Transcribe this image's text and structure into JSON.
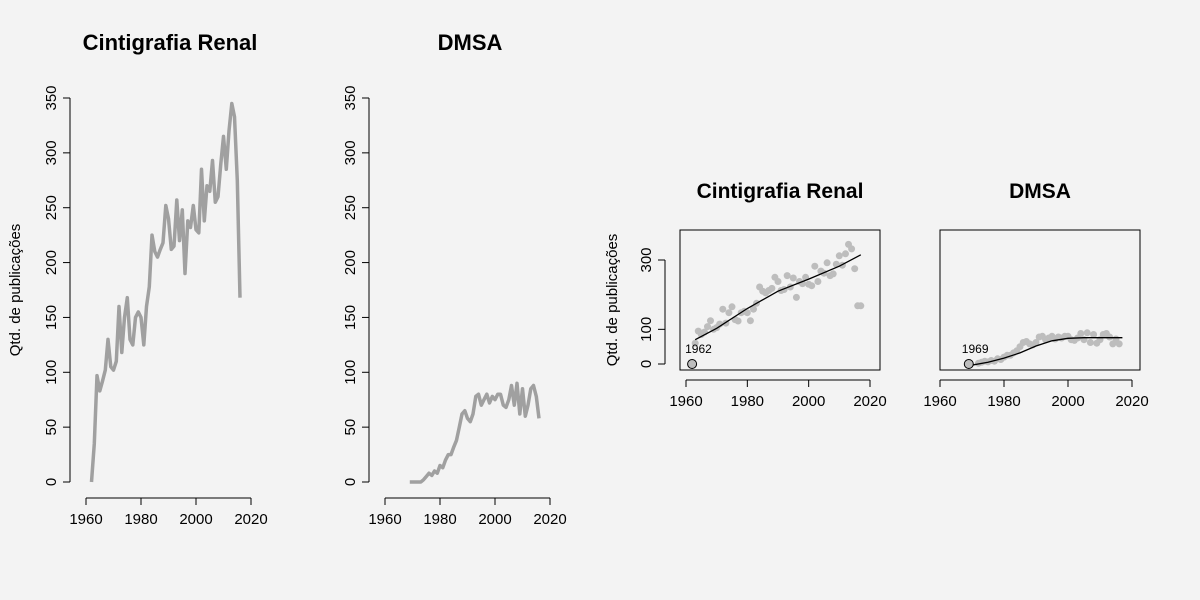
{
  "chart_data": [
    {
      "type": "line",
      "title": "Cintigrafia Renal",
      "xlabel": "",
      "ylabel": "Qtd. de publicações",
      "xlim": [
        1962,
        2017
      ],
      "ylim": [
        0,
        350
      ],
      "xticks": [
        "1960",
        "1980",
        "2000",
        "2020"
      ],
      "yticks": [
        "0",
        "50",
        "100",
        "150",
        "200",
        "250",
        "300",
        "350"
      ],
      "x": [
        1962,
        1963,
        1964,
        1965,
        1966,
        1967,
        1968,
        1969,
        1970,
        1971,
        1972,
        1973,
        1974,
        1975,
        1976,
        1977,
        1978,
        1979,
        1980,
        1981,
        1982,
        1983,
        1984,
        1985,
        1986,
        1987,
        1988,
        1989,
        1990,
        1991,
        1992,
        1993,
        1994,
        1995,
        1996,
        1997,
        1998,
        1999,
        2000,
        2001,
        2002,
        2003,
        2004,
        2005,
        2006,
        2007,
        2008,
        2009,
        2010,
        2011,
        2012,
        2013,
        2014,
        2015,
        2016
      ],
      "y": [
        0,
        35,
        97,
        83,
        92,
        102,
        130,
        105,
        102,
        110,
        160,
        118,
        150,
        168,
        130,
        125,
        150,
        155,
        150,
        125,
        160,
        178,
        225,
        210,
        205,
        212,
        218,
        252,
        240,
        212,
        215,
        257,
        220,
        248,
        190,
        238,
        232,
        252,
        230,
        227,
        285,
        238,
        270,
        265,
        293,
        255,
        260,
        290,
        315,
        285,
        320,
        345,
        333,
        275,
        168
      ]
    },
    {
      "type": "line",
      "title": "DMSA",
      "xlabel": "",
      "ylabel": "",
      "xlim": [
        1969,
        2017
      ],
      "ylim": [
        0,
        350
      ],
      "xticks": [
        "1960",
        "1980",
        "2000",
        "2020"
      ],
      "yticks": [
        "0",
        "50",
        "100",
        "150",
        "200",
        "250",
        "300",
        "350"
      ],
      "x": [
        1969,
        1970,
        1971,
        1972,
        1973,
        1974,
        1975,
        1976,
        1977,
        1978,
        1979,
        1980,
        1981,
        1982,
        1983,
        1984,
        1985,
        1986,
        1987,
        1988,
        1989,
        1990,
        1991,
        1992,
        1993,
        1994,
        1995,
        1996,
        1997,
        1998,
        1999,
        2000,
        2001,
        2002,
        2003,
        2004,
        2005,
        2006,
        2007,
        2008,
        2009,
        2010,
        2011,
        2012,
        2013,
        2014,
        2015,
        2016
      ],
      "y": [
        0,
        0,
        0,
        0,
        0,
        2,
        5,
        8,
        6,
        10,
        8,
        15,
        13,
        20,
        25,
        25,
        32,
        38,
        50,
        62,
        65,
        58,
        55,
        62,
        78,
        80,
        70,
        75,
        80,
        72,
        78,
        75,
        80,
        80,
        70,
        68,
        75,
        88,
        70,
        90,
        62,
        85,
        60,
        70,
        85,
        88,
        78,
        58
      ]
    },
    {
      "type": "scatter",
      "title": "Cintigrafia Renal",
      "xlabel": "",
      "ylabel": "Qtd. de publicações",
      "xlim": [
        1959,
        2022
      ],
      "ylim": [
        -10,
        385
      ],
      "xticks": [
        "1960",
        "1980",
        "2000",
        "2020"
      ],
      "yticks": [
        "0",
        "100",
        "300"
      ],
      "first_year_label": "1962",
      "first_point": {
        "x": 1962,
        "y": 0
      },
      "x": [
        1963,
        1964,
        1965,
        1966,
        1967,
        1968,
        1969,
        1970,
        1971,
        1972,
        1973,
        1974,
        1975,
        1976,
        1977,
        1978,
        1979,
        1980,
        1981,
        1982,
        1983,
        1984,
        1985,
        1986,
        1987,
        1988,
        1989,
        1990,
        1991,
        1992,
        1993,
        1994,
        1995,
        1996,
        1997,
        1998,
        1999,
        2000,
        2001,
        2002,
        2003,
        2004,
        2005,
        2006,
        2007,
        2008,
        2009,
        2010,
        2011,
        2012,
        2013,
        2014,
        2015,
        2016,
        2017
      ],
      "y": [
        60,
        95,
        85,
        92,
        108,
        125,
        100,
        105,
        115,
        158,
        118,
        148,
        165,
        128,
        124,
        148,
        152,
        148,
        125,
        158,
        175,
        222,
        210,
        205,
        212,
        218,
        250,
        238,
        212,
        215,
        255,
        222,
        248,
        192,
        238,
        232,
        250,
        230,
        226,
        282,
        238,
        268,
        262,
        292,
        255,
        260,
        288,
        312,
        285,
        318,
        345,
        332,
        275,
        168,
        168
      ],
      "smooth_x": [
        1963,
        1970,
        1980,
        1990,
        2000,
        2010,
        2017
      ],
      "smooth_y": [
        70,
        103,
        160,
        210,
        245,
        282,
        315
      ]
    },
    {
      "type": "scatter",
      "title": "DMSA",
      "xlabel": "",
      "ylabel": "",
      "xlim": [
        1959,
        2022
      ],
      "ylim": [
        -10,
        385
      ],
      "xticks": [
        "1960",
        "1980",
        "2000",
        "2020"
      ],
      "yticks": [],
      "first_year_label": "1969",
      "first_point": {
        "x": 1969,
        "y": 0
      },
      "x": [
        1972,
        1973,
        1974,
        1975,
        1976,
        1977,
        1978,
        1979,
        1980,
        1981,
        1982,
        1983,
        1984,
        1985,
        1986,
        1987,
        1988,
        1989,
        1990,
        1991,
        1992,
        1993,
        1994,
        1995,
        1996,
        1997,
        1998,
        1999,
        2000,
        2001,
        2002,
        2003,
        2004,
        2005,
        2006,
        2007,
        2008,
        2009,
        2010,
        2011,
        2012,
        2013,
        2014,
        2015,
        2016
      ],
      "y": [
        2,
        5,
        8,
        6,
        10,
        8,
        15,
        13,
        20,
        25,
        25,
        32,
        38,
        50,
        62,
        65,
        58,
        55,
        62,
        78,
        80,
        70,
        75,
        80,
        72,
        78,
        75,
        80,
        80,
        70,
        68,
        75,
        88,
        70,
        90,
        62,
        85,
        60,
        70,
        85,
        88,
        78,
        58,
        72,
        58
      ],
      "smooth_x": [
        1969,
        1975,
        1980,
        1985,
        1990,
        1995,
        2000,
        2005,
        2010,
        2017
      ],
      "smooth_y": [
        -5,
        5,
        17,
        32,
        52,
        67,
        74,
        76,
        76,
        76
      ]
    }
  ]
}
